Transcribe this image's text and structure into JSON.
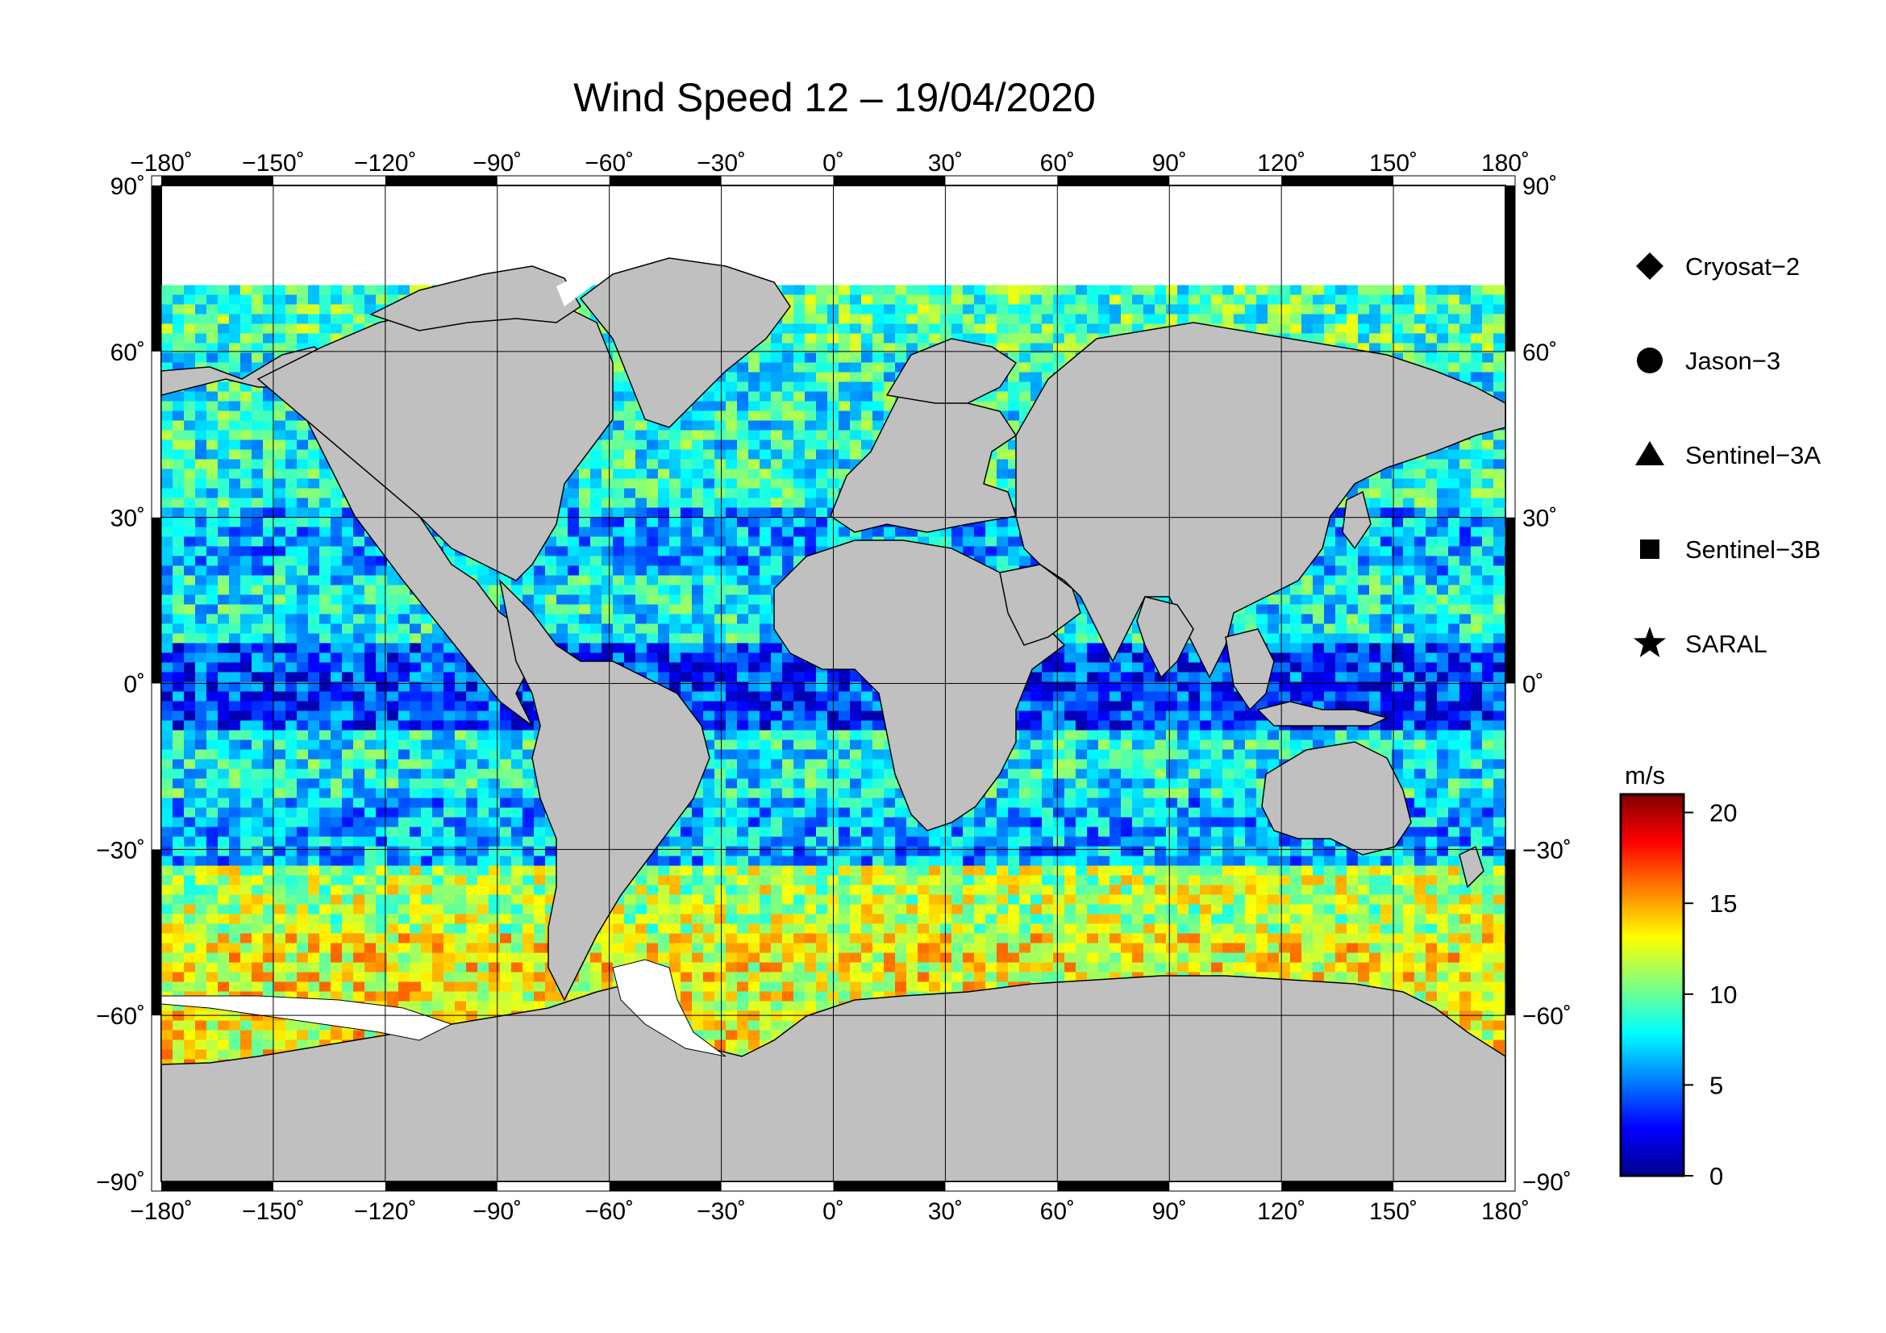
{
  "title": "Wind Speed 12 – 19/04/2020",
  "axes": {
    "lon_ticks": [
      "−180˚",
      "−150˚",
      "−120˚",
      "−90˚",
      "−60˚",
      "−30˚",
      "0˚",
      "30˚",
      "60˚",
      "90˚",
      "120˚",
      "150˚",
      "180˚"
    ],
    "lat_ticks": [
      "90˚",
      "60˚",
      "30˚",
      "0˚",
      "−30˚",
      "−60˚",
      "−90˚"
    ],
    "lon_values": [
      -180,
      -150,
      -120,
      -90,
      -60,
      -30,
      0,
      30,
      60,
      90,
      120,
      150,
      180
    ],
    "lat_values": [
      90,
      60,
      30,
      0,
      -30,
      -60,
      -90
    ]
  },
  "legend": {
    "items": [
      {
        "label": "Cryosat−2",
        "marker": "diamond"
      },
      {
        "label": "Jason−3",
        "marker": "circle"
      },
      {
        "label": "Sentinel−3A",
        "marker": "triangle"
      },
      {
        "label": "Sentinel−3B",
        "marker": "square"
      },
      {
        "label": "SARAL",
        "marker": "star"
      }
    ]
  },
  "colorbar": {
    "unit": "m/s",
    "min": 0,
    "max": 21,
    "tick_values": [
      0,
      5,
      10,
      15,
      20
    ],
    "tick_labels": [
      "0",
      "5",
      "10",
      "15",
      "20"
    ],
    "colormap": "jet"
  },
  "colors": {
    "land": "#c0c0c0",
    "ice": "#ffffff",
    "coast": "#000000"
  }
}
